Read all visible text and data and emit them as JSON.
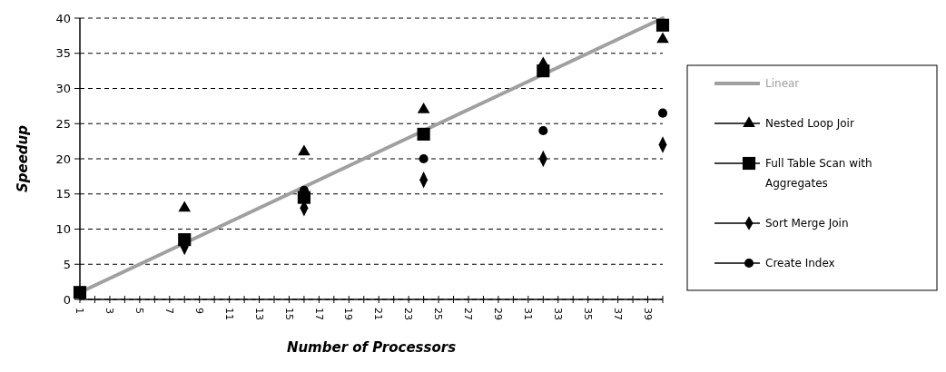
{
  "chart_data": {
    "type": "scatter",
    "xlabel": "Number of Processors",
    "ylabel": "Speedup",
    "categories": [
      "1",
      null,
      "3",
      null,
      "5",
      null,
      "7",
      null,
      "9",
      null,
      "11",
      null,
      "13",
      null,
      "15",
      null,
      "17",
      null,
      "19",
      null,
      "21",
      null,
      "23",
      null,
      "25",
      null,
      "27",
      null,
      "29",
      null,
      "31",
      null,
      "33",
      null,
      "35",
      null,
      "37",
      null,
      "39",
      null
    ],
    "ylim": [
      0,
      40
    ],
    "yticks": [
      0,
      5,
      10,
      15,
      20,
      25,
      30,
      35,
      40
    ],
    "grid": "y",
    "legend": "right",
    "series": [
      {
        "name": "Linear",
        "type": "line",
        "color": "#a0a0a0",
        "marker": "none",
        "values": [
          1,
          2,
          3,
          4,
          5,
          6,
          7,
          8,
          9,
          10,
          11,
          12,
          13,
          14,
          15,
          16,
          17,
          18,
          19,
          20,
          21,
          22,
          23,
          24,
          25,
          26,
          27,
          28,
          29,
          30,
          31,
          32,
          33,
          34,
          35,
          36,
          37,
          38,
          39,
          40
        ]
      },
      {
        "name": "Nested Loop Joir",
        "type": "scatter",
        "color": "#000000",
        "marker": "triangle",
        "values": [
          null,
          null,
          null,
          null,
          null,
          null,
          null,
          13,
          null,
          null,
          null,
          null,
          null,
          null,
          null,
          21,
          null,
          null,
          null,
          null,
          null,
          null,
          null,
          27,
          null,
          null,
          null,
          null,
          null,
          null,
          null,
          33.5,
          null,
          null,
          null,
          null,
          null,
          null,
          null,
          37
        ]
      },
      {
        "name": "Full Table Scan with Aggregates",
        "type": "scatter",
        "color": "#000000",
        "marker": "square",
        "values": [
          1,
          null,
          null,
          null,
          null,
          null,
          null,
          8.5,
          null,
          null,
          null,
          null,
          null,
          null,
          null,
          14.5,
          null,
          null,
          null,
          null,
          null,
          null,
          null,
          23.5,
          null,
          null,
          null,
          null,
          null,
          null,
          null,
          32.5,
          null,
          null,
          null,
          null,
          null,
          null,
          null,
          39
        ]
      },
      {
        "name": "Sort Merge Join",
        "type": "scatter",
        "color": "#000000",
        "marker": "diamond",
        "values": [
          null,
          null,
          null,
          null,
          null,
          null,
          null,
          7.5,
          null,
          null,
          null,
          null,
          null,
          null,
          null,
          13,
          null,
          null,
          null,
          null,
          null,
          null,
          null,
          17,
          null,
          null,
          null,
          null,
          null,
          null,
          null,
          20,
          null,
          null,
          null,
          null,
          null,
          null,
          null,
          22
        ]
      },
      {
        "name": "Create Index",
        "type": "scatter",
        "color": "#000000",
        "marker": "circle",
        "values": [
          null,
          null,
          null,
          null,
          null,
          null,
          null,
          null,
          null,
          null,
          null,
          null,
          null,
          null,
          null,
          15.5,
          null,
          null,
          null,
          null,
          null,
          null,
          null,
          20,
          null,
          null,
          null,
          null,
          null,
          null,
          null,
          24,
          null,
          null,
          null,
          null,
          null,
          null,
          null,
          26.5
        ]
      }
    ]
  }
}
